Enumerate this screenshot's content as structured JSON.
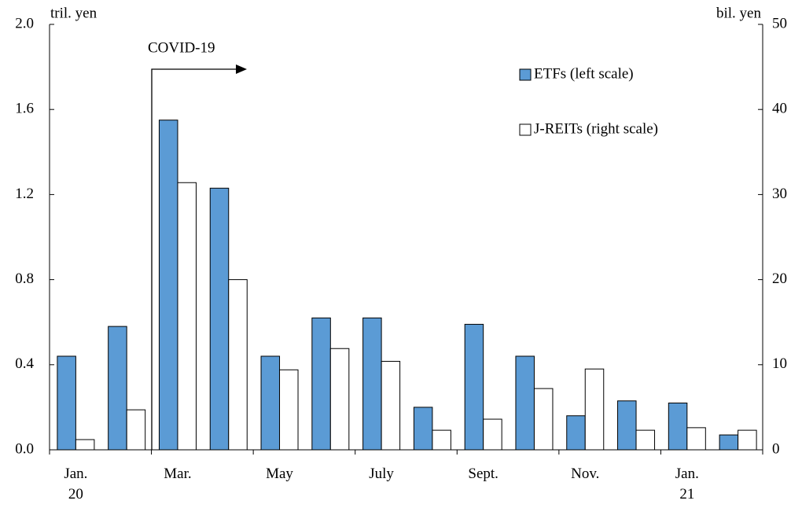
{
  "chart_data": {
    "type": "bar",
    "annotation": "COVID-19",
    "y_unit": "tril. yen",
    "y2_unit": "bil. yen",
    "categories": [
      "Jan.\n20",
      null,
      "Mar.",
      null,
      "May",
      null,
      "July",
      null,
      "Sept.",
      null,
      "Nov.",
      null,
      "Jan.\n21",
      null
    ],
    "series": [
      {
        "name": "ETFs (left scale)",
        "color": "#5b9bd5",
        "values": [
          0.44,
          0.58,
          1.55,
          1.23,
          0.44,
          0.62,
          0.62,
          0.2,
          0.59,
          0.44,
          0.16,
          0.23,
          0.22,
          0.07
        ]
      },
      {
        "name": "J-REITs (right scale)",
        "color": "#ffffff",
        "axis": "y2",
        "values": [
          1.2,
          4.7,
          31.4,
          20,
          9.4,
          11.9,
          10.4,
          2.3,
          3.6,
          7.2,
          9.5,
          2.3,
          2.6,
          2.3
        ]
      }
    ],
    "ylim": [
      0,
      2.0
    ],
    "yticks": [
      {
        "value": 0,
        "label": "0.0"
      },
      0.4,
      0.8,
      1.2,
      1.6,
      {
        "value": 2.0,
        "label": "2.0"
      }
    ],
    "y2lim": [
      0,
      50
    ],
    "y2ticks": [
      0,
      10,
      20,
      30,
      40,
      50
    ],
    "legend": "top-right"
  }
}
